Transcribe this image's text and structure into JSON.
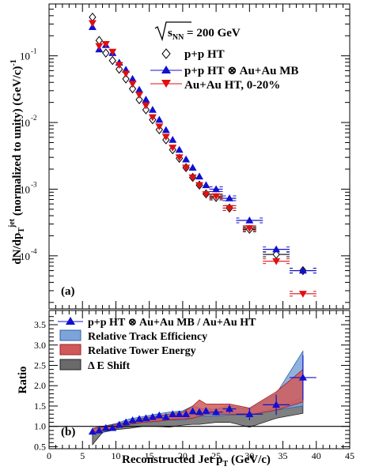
{
  "chart_data": [
    {
      "panel": "top",
      "type": "scatter",
      "panel_label": "(a)",
      "ylabel": {
        "main": "dN/dp",
        "sub": "T",
        "sup": "jet",
        "tail": " (normalized to unity) (GeV/c)",
        "tail_sup": "-1"
      },
      "energy_label": {
        "pre": "s",
        "sub": "NN",
        "post": " = 200 GeV"
      },
      "x_range": [
        0,
        45
      ],
      "y_scale": "log",
      "y_range": [
        1.6e-05,
        0.6
      ],
      "y_ticks": [
        {
          "value": 0.1,
          "base": "10",
          "exp": "-1"
        },
        {
          "value": 0.01,
          "base": "10",
          "exp": "-2"
        },
        {
          "value": 0.001,
          "base": "10",
          "exp": "-3"
        },
        {
          "value": 0.0001,
          "base": "10",
          "exp": "-4"
        }
      ],
      "legend_position": "top-right",
      "series": [
        {
          "name": "p+p HT",
          "marker": "open-diamond",
          "color": "#000000",
          "x": [
            6.5,
            7.5,
            8.5,
            9.5,
            10.5,
            11.5,
            12.5,
            13.5,
            14.5,
            15.5,
            16.5,
            17.5,
            18.5,
            19.5,
            20.5,
            21.5,
            22.5,
            23.5,
            25.0,
            27.0,
            30.0,
            34.0,
            38.0
          ],
          "y": [
            0.38,
            0.17,
            0.11,
            0.085,
            0.063,
            0.045,
            0.032,
            0.022,
            0.0155,
            0.011,
            0.0078,
            0.0055,
            0.0039,
            0.0029,
            0.0021,
            0.0015,
            0.00115,
            0.00085,
            0.00075,
            0.00052,
            0.00025,
            0.000105,
            6e-05
          ],
          "xerr": [
            0.5,
            0.5,
            0.5,
            0.5,
            0.5,
            0.5,
            0.5,
            0.5,
            0.5,
            0.5,
            0.5,
            0.5,
            0.5,
            0.5,
            0.5,
            0.5,
            0.5,
            0.5,
            1.0,
            1.0,
            1.0,
            2.0,
            2.0
          ]
        },
        {
          "name": "p+p HT ⊗ Au+Au MB",
          "marker": "filled-triangle-up",
          "color": "#1010d0",
          "x": [
            6.5,
            7.5,
            8.5,
            9.5,
            10.5,
            11.5,
            12.5,
            13.5,
            14.5,
            15.5,
            16.5,
            17.5,
            18.5,
            19.5,
            20.5,
            21.5,
            22.5,
            23.5,
            25.0,
            27.0,
            30.0,
            34.0,
            38.0
          ],
          "y": [
            0.27,
            0.125,
            0.145,
            0.11,
            0.079,
            0.062,
            0.045,
            0.031,
            0.022,
            0.0155,
            0.011,
            0.0077,
            0.0055,
            0.0039,
            0.0028,
            0.0021,
            0.00155,
            0.00115,
            0.001,
            0.00073,
            0.00034,
            0.000125,
            6e-05
          ],
          "xerr": [
            0.5,
            0.5,
            0.5,
            0.5,
            0.5,
            0.5,
            0.5,
            0.5,
            0.5,
            0.5,
            0.5,
            0.5,
            0.5,
            0.5,
            0.5,
            0.5,
            0.5,
            0.5,
            1.0,
            1.0,
            2.0,
            2.0,
            2.0
          ]
        },
        {
          "name": "Au+Au HT, 0-20%",
          "marker": "filled-triangle-down",
          "color": "#e01010",
          "x": [
            6.5,
            7.5,
            8.5,
            9.5,
            10.5,
            11.5,
            12.5,
            13.5,
            14.5,
            15.5,
            16.5,
            17.5,
            18.5,
            19.5,
            20.5,
            21.5,
            22.5,
            23.5,
            25.0,
            27.0,
            30.0,
            34.0,
            38.0
          ],
          "y": [
            0.31,
            0.14,
            0.15,
            0.115,
            0.073,
            0.054,
            0.038,
            0.026,
            0.018,
            0.012,
            0.0087,
            0.0061,
            0.0042,
            0.003,
            0.0021,
            0.0015,
            0.00115,
            0.00084,
            0.00078,
            0.00052,
            0.00026,
            8.3e-05,
            2.7e-05
          ],
          "xerr": [
            0.5,
            0.5,
            0.5,
            0.5,
            0.5,
            0.5,
            0.5,
            0.5,
            0.5,
            0.5,
            0.5,
            0.5,
            0.5,
            0.5,
            0.5,
            0.5,
            0.5,
            0.5,
            1.0,
            1.0,
            1.0,
            2.0,
            2.0
          ]
        }
      ]
    },
    {
      "panel": "bottom",
      "type": "scatter",
      "panel_label": "(b)",
      "xlabel": {
        "main": "Reconstructed Jet p",
        "sub": "T",
        "tail": " (GeV/c)"
      },
      "ylabel": "Ratio",
      "x_range": [
        0,
        45
      ],
      "x_ticks": [
        0,
        5,
        10,
        15,
        20,
        25,
        30,
        35,
        40,
        45
      ],
      "y_range": [
        0.45,
        3.85
      ],
      "y_ticks": [
        "0.5",
        "1.0",
        "1.5",
        "2.0",
        "2.5",
        "3.0",
        "3.5"
      ],
      "reference_line": 1.0,
      "legend_position": "top-left",
      "series": [
        {
          "name": "p+p HT ⊗ Au+Au MB / Au+Au HT",
          "marker": "filled-triangle-up",
          "color": "#1010d0",
          "x": [
            6.5,
            7.5,
            8.5,
            9.5,
            10.5,
            11.5,
            12.5,
            13.5,
            14.5,
            15.5,
            16.5,
            17.5,
            18.5,
            19.5,
            20.5,
            21.5,
            22.5,
            23.5,
            25.0,
            27.0,
            30.0,
            34.0,
            38.0
          ],
          "y": [
            0.87,
            0.9,
            0.96,
            0.96,
            1.04,
            1.1,
            1.15,
            1.18,
            1.2,
            1.23,
            1.27,
            1.23,
            1.3,
            1.3,
            1.3,
            1.37,
            1.35,
            1.38,
            1.35,
            1.43,
            1.3,
            1.53,
            2.2
          ],
          "yerr": [
            0.05,
            0.05,
            0.05,
            0.05,
            0.05,
            0.05,
            0.05,
            0.05,
            0.05,
            0.05,
            0.05,
            0.05,
            0.05,
            0.05,
            0.06,
            0.07,
            0.07,
            0.08,
            0.08,
            0.1,
            0.15,
            0.25,
            0.55
          ],
          "xerr": [
            0.5,
            0.5,
            0.5,
            0.5,
            0.5,
            0.5,
            0.5,
            0.5,
            0.5,
            0.5,
            0.5,
            0.5,
            0.5,
            0.5,
            0.5,
            0.5,
            0.5,
            0.5,
            1.0,
            1.0,
            2.0,
            2.0,
            2.0
          ]
        }
      ],
      "bands": [
        {
          "name": "Relative Track Efficiency",
          "color": "#7da4d9",
          "edge": "#3060b0",
          "x": [
            6.5,
            8,
            10,
            12,
            14,
            16,
            18,
            20,
            21.5,
            22.5,
            23.5,
            25,
            27,
            30,
            34,
            38
          ],
          "lower": [
            0.82,
            0.9,
            0.95,
            1.05,
            1.1,
            1.12,
            1.16,
            1.15,
            1.2,
            1.25,
            1.25,
            1.25,
            1.28,
            1.28,
            1.4,
            1.5
          ],
          "upper": [
            0.95,
            1.0,
            1.07,
            1.18,
            1.24,
            1.3,
            1.35,
            1.38,
            1.5,
            1.45,
            1.42,
            1.42,
            1.5,
            1.42,
            1.8,
            2.85
          ]
        },
        {
          "name": "Relative Tower Energy",
          "color": "#d05a5a",
          "edge": "#a02020",
          "x": [
            6.5,
            8,
            10,
            12,
            14,
            16,
            18,
            20,
            21.5,
            22.5,
            23.5,
            25,
            27,
            30,
            34,
            38
          ],
          "lower": [
            0.85,
            0.9,
            0.95,
            1.05,
            1.1,
            1.12,
            1.16,
            1.18,
            1.2,
            1.25,
            1.3,
            1.3,
            1.3,
            1.28,
            1.4,
            1.6
          ],
          "upper": [
            0.95,
            0.98,
            1.05,
            1.12,
            1.2,
            1.25,
            1.3,
            1.35,
            1.5,
            1.65,
            1.55,
            1.55,
            1.55,
            1.45,
            1.85,
            2.4
          ]
        },
        {
          "name": "Δ E Shift",
          "color": "#6a6a6a",
          "edge": "#202020",
          "x": [
            6.5,
            8,
            10,
            12,
            14,
            16,
            18,
            20,
            21.5,
            22.5,
            23.5,
            25,
            27,
            30,
            34,
            38
          ],
          "lower": [
            0.55,
            0.85,
            0.92,
            0.95,
            1.0,
            1.0,
            0.98,
            1.03,
            1.05,
            1.05,
            1.07,
            1.1,
            1.1,
            0.98,
            1.2,
            1.32
          ],
          "upper": [
            0.95,
            1.0,
            1.05,
            1.1,
            1.15,
            1.18,
            1.22,
            1.25,
            1.28,
            1.32,
            1.35,
            1.35,
            1.38,
            1.3,
            1.45,
            1.72
          ]
        }
      ]
    }
  ]
}
